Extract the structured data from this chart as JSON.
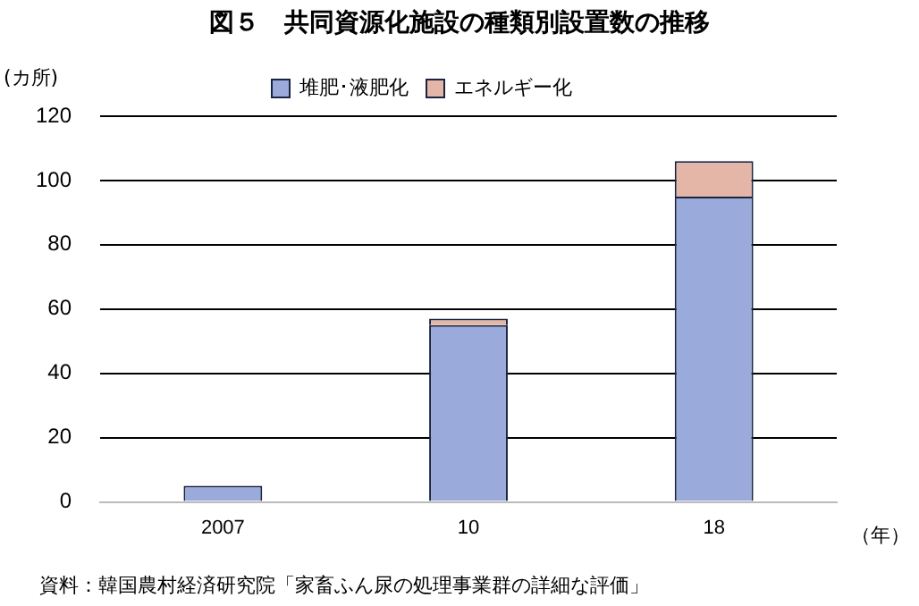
{
  "chart_data": {
    "type": "bar",
    "title": "図５　共同資源化施設の種類別設置数の推移",
    "ylabel": "(カ所)",
    "xlabel": "（年）",
    "annotations": [
      "資料：韓国農村経済研究院「家畜ふん尿の処理事業群の詳細な評価」"
    ],
    "categories": [
      "2007",
      "10",
      "18"
    ],
    "stacked": true,
    "series": [
      {
        "name": "堆肥･液肥化",
        "color": "#9aaadb",
        "values": [
          5,
          55,
          95
        ]
      },
      {
        "name": "エネルギー化",
        "color": "#e3b6a8",
        "values": [
          0,
          2,
          11
        ]
      }
    ],
    "ylim": [
      0,
      120
    ],
    "yticks": [
      0,
      20,
      40,
      60,
      80,
      100,
      120
    ],
    "grid": "y",
    "legend": "top"
  }
}
